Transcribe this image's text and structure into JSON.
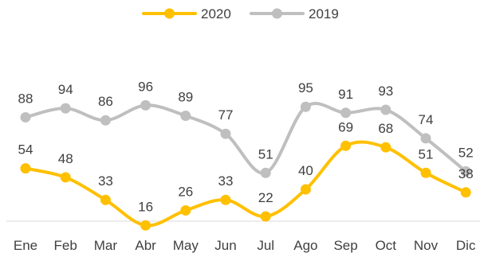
{
  "chart_data": {
    "type": "line",
    "title": "",
    "xlabel": "",
    "ylabel": "",
    "ylim": [
      0,
      100
    ],
    "grid": false,
    "legend_position": "top",
    "categories": [
      "Ene",
      "Feb",
      "Mar",
      "Abr",
      "May",
      "Jun",
      "Jul",
      "Ago",
      "Sep",
      "Oct",
      "Nov",
      "Dic"
    ],
    "series": [
      {
        "name": "2020",
        "color": "#FFC000",
        "values": [
          54,
          48,
          33,
          16,
          26,
          33,
          22,
          40,
          69,
          68,
          51,
          38
        ]
      },
      {
        "name": "2019",
        "color": "#BFBFBF",
        "values": [
          88,
          94,
          86,
          96,
          89,
          77,
          51,
          95,
          91,
          93,
          74,
          52
        ]
      }
    ]
  }
}
